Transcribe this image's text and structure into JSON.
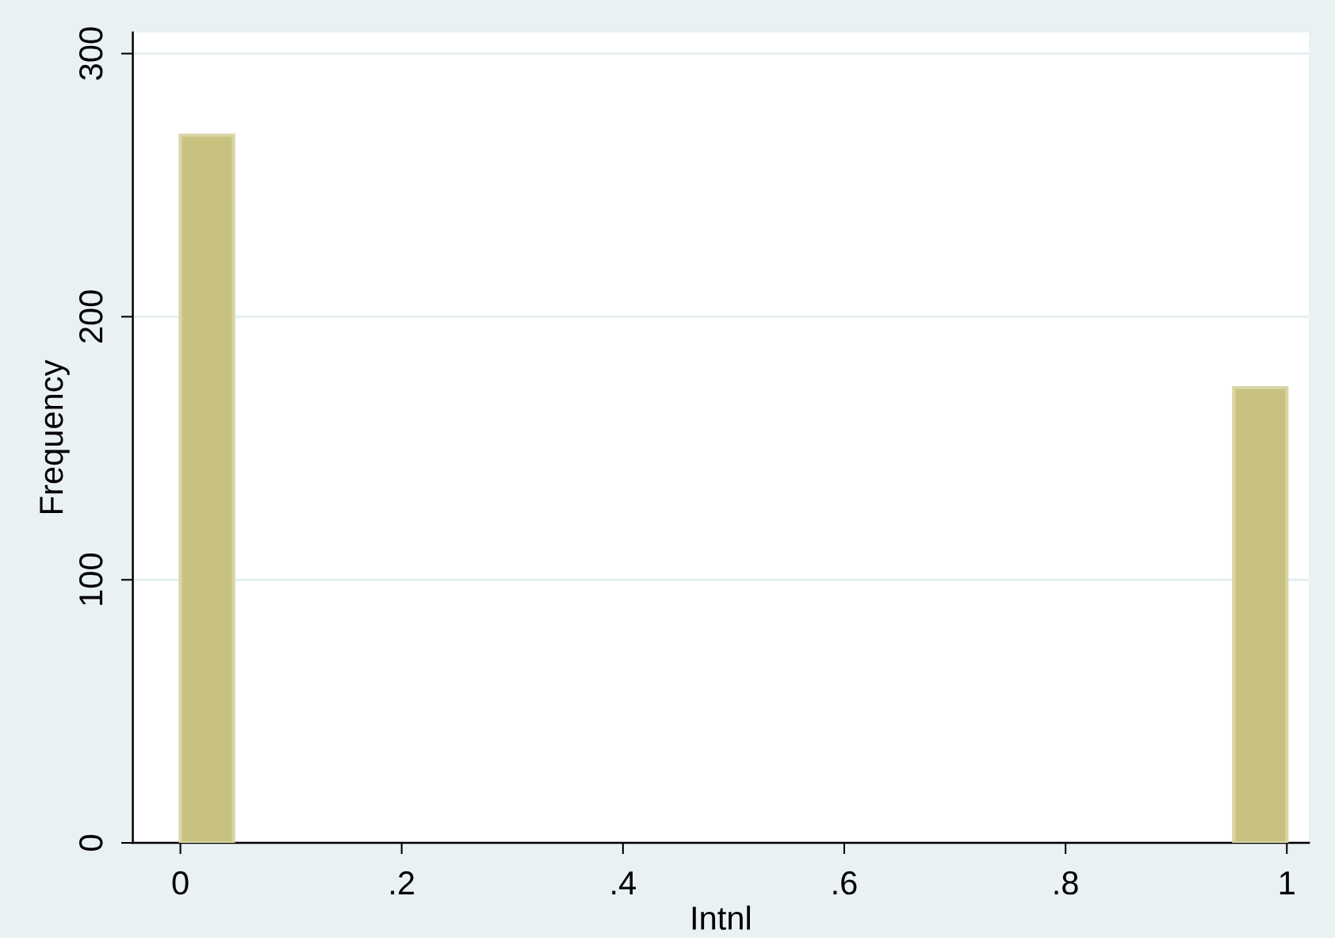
{
  "chart_data": {
    "type": "histogram",
    "xlabel": "Intnl",
    "ylabel": "Frequency",
    "bins": [
      0,
      0.048,
      0.952,
      1
    ],
    "values": [
      269,
      null,
      173
    ],
    "color": "#c8c280",
    "xlim": [
      -0.043,
      1.02
    ],
    "ylim": [
      0,
      308
    ],
    "xticks": [
      0,
      {
        "value": 0.2,
        "label": ".2"
      },
      {
        "value": 0.4,
        "label": ".4"
      },
      {
        "value": 0.6,
        "label": ".6"
      },
      {
        "value": 0.8,
        "label": ".8"
      },
      1
    ],
    "yticks": [
      0,
      100,
      200,
      300
    ],
    "grid": "y"
  }
}
